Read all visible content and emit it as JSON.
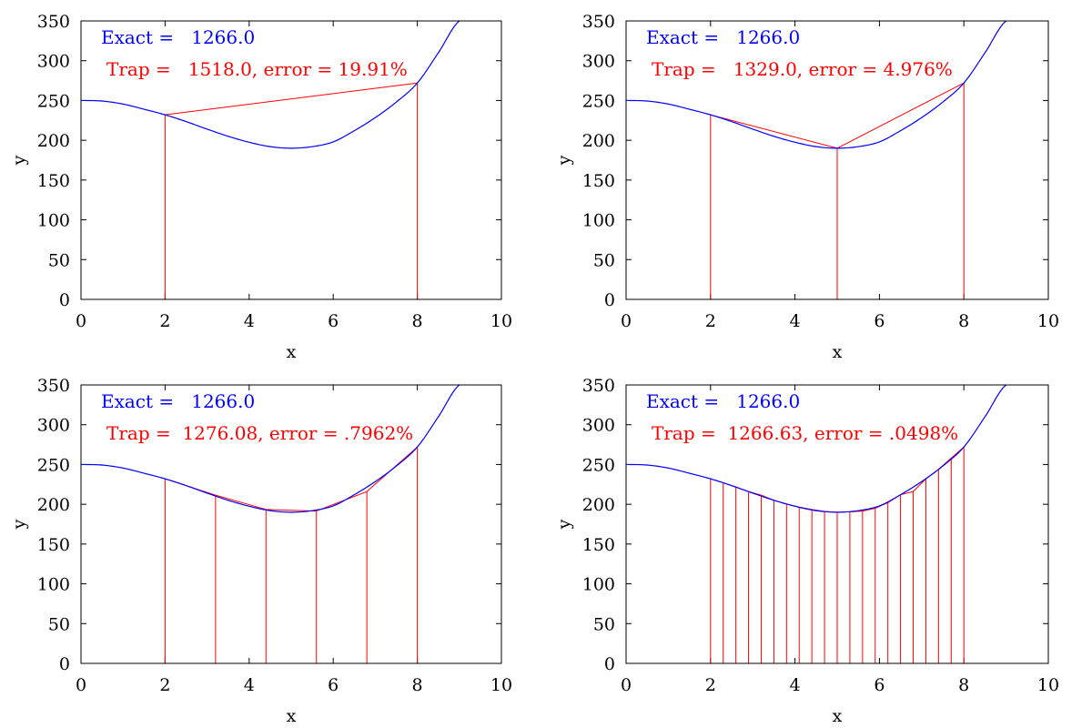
{
  "chart_data": [
    {
      "type": "line",
      "xlabel": "x",
      "ylabel": "y",
      "xlim": [
        0,
        10
      ],
      "ylim": [
        0,
        350
      ],
      "xticks": [
        "0",
        "2",
        "4",
        "6",
        "8",
        "10"
      ],
      "yticks": [
        "0",
        "50",
        "100",
        "150",
        "200",
        "250",
        "300",
        "350"
      ],
      "exact_label": "Exact =   1266.0",
      "trap_label": "Trap =   1518.0, error = 19.91%",
      "curve_color": "#0000ff",
      "trap_color": "#ff0000",
      "curve": {
        "x": [
          0,
          0.5,
          1,
          1.5,
          2,
          2.5,
          3,
          3.5,
          4,
          4.5,
          5,
          5.5,
          6,
          6.5,
          7,
          7.5,
          8,
          8.5,
          9
        ],
        "y": [
          250,
          249.3,
          245.5,
          239,
          232,
          223.5,
          214,
          205,
          197.5,
          192,
          190,
          192,
          198,
          212,
          228.5,
          248,
          272,
          310,
          350
        ]
      },
      "trap_nodes": {
        "x": [
          2,
          8
        ],
        "y": [
          232,
          272
        ]
      }
    },
    {
      "type": "line",
      "xlabel": "x",
      "ylabel": "y",
      "xlim": [
        0,
        10
      ],
      "ylim": [
        0,
        350
      ],
      "xticks": [
        "0",
        "2",
        "4",
        "6",
        "8",
        "10"
      ],
      "yticks": [
        "0",
        "50",
        "100",
        "150",
        "200",
        "250",
        "300",
        "350"
      ],
      "exact_label": "Exact =   1266.0",
      "trap_label": "Trap =   1329.0, error = 4.976%",
      "curve_color": "#0000ff",
      "trap_color": "#ff0000",
      "curve": {
        "x": [
          0,
          0.5,
          1,
          1.5,
          2,
          2.5,
          3,
          3.5,
          4,
          4.5,
          5,
          5.5,
          6,
          6.5,
          7,
          7.5,
          8,
          8.5,
          9
        ],
        "y": [
          250,
          249.3,
          245.5,
          239,
          232,
          223.5,
          214,
          205,
          197.5,
          192,
          190,
          192,
          198,
          212,
          228.5,
          248,
          272,
          310,
          350
        ]
      },
      "trap_nodes": {
        "x": [
          2,
          5,
          8
        ],
        "y": [
          232,
          190,
          272
        ]
      }
    },
    {
      "type": "line",
      "xlabel": "x",
      "ylabel": "y",
      "xlim": [
        0,
        10
      ],
      "ylim": [
        0,
        350
      ],
      "xticks": [
        "0",
        "2",
        "4",
        "6",
        "8",
        "10"
      ],
      "yticks": [
        "0",
        "50",
        "100",
        "150",
        "200",
        "250",
        "300",
        "350"
      ],
      "exact_label": "Exact =   1266.0",
      "trap_label": "Trap =  1276.08, error = .7962%",
      "curve_color": "#0000ff",
      "trap_color": "#ff0000",
      "curve": {
        "x": [
          0,
          0.5,
          1,
          1.5,
          2,
          2.5,
          3,
          3.5,
          4,
          4.5,
          5,
          5.5,
          6,
          6.5,
          7,
          7.5,
          8,
          8.5,
          9
        ],
        "y": [
          250,
          249.3,
          245.5,
          239,
          232,
          223.5,
          214,
          205,
          197.5,
          192,
          190,
          192,
          198,
          212,
          228.5,
          248,
          272,
          310,
          350
        ]
      },
      "trap_nodes": {
        "x": [
          2,
          3.2,
          4.4,
          5.6,
          6.8,
          8
        ],
        "y": [
          232,
          211.5,
          193.5,
          191.5,
          216,
          272
        ]
      }
    },
    {
      "type": "line",
      "xlabel": "x",
      "ylabel": "y",
      "xlim": [
        0,
        10
      ],
      "ylim": [
        0,
        350
      ],
      "xticks": [
        "0",
        "2",
        "4",
        "6",
        "8",
        "10"
      ],
      "yticks": [
        "0",
        "50",
        "100",
        "150",
        "200",
        "250",
        "300",
        "350"
      ],
      "exact_label": "Exact =   1266.0",
      "trap_label": "Trap =  1266.63, error = .0498%",
      "curve_color": "#0000ff",
      "trap_color": "#ff0000",
      "curve": {
        "x": [
          0,
          0.5,
          1,
          1.5,
          2,
          2.5,
          3,
          3.5,
          4,
          4.5,
          5,
          5.5,
          6,
          6.5,
          7,
          7.5,
          8,
          8.5,
          9
        ],
        "y": [
          250,
          249.3,
          245.5,
          239,
          232,
          223.5,
          214,
          205,
          197.5,
          192,
          190,
          192,
          198,
          212,
          228.5,
          248,
          272,
          310,
          350
        ]
      },
      "trap_nodes": {
        "x": [
          2,
          2.3,
          2.6,
          2.9,
          3.2,
          3.5,
          3.8,
          4.1,
          4.4,
          4.7,
          5,
          5.3,
          5.6,
          5.9,
          6.2,
          6.5,
          6.8,
          7.1,
          7.4,
          7.7,
          8
        ],
        "y": [
          232,
          227,
          221.5,
          216,
          211.5,
          205,
          200.5,
          196.5,
          193.5,
          191,
          190,
          190.5,
          191.5,
          195,
          202,
          212,
          216,
          232,
          244,
          258,
          272
        ]
      }
    }
  ]
}
